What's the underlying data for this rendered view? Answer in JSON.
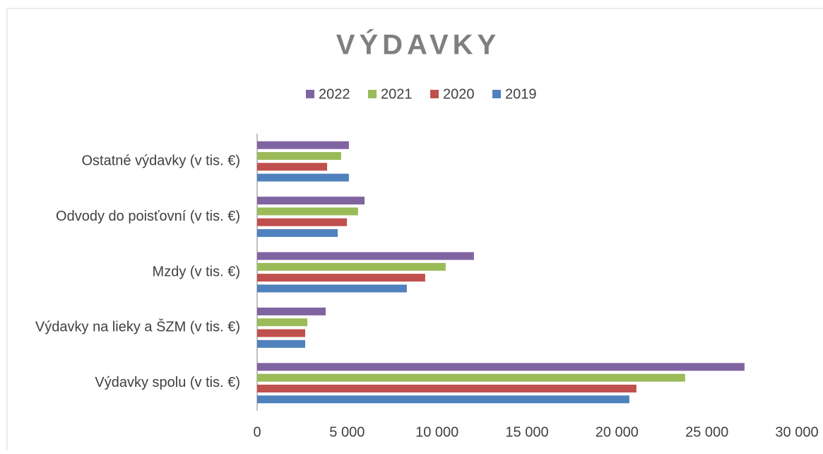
{
  "chart_data": {
    "type": "bar",
    "orientation": "horizontal",
    "title": "VÝDAVKY",
    "categories": [
      "Výdavky spolu (v tis. €)",
      "Výdavky na lieky a ŠZM (v tis. €)",
      "Mzdy (v tis. €)",
      "Odvody do poisťovní (v tis. €)",
      "Ostatné výdavky (v tis. €)"
    ],
    "series": [
      {
        "name": "2019",
        "color": "#4f81bd",
        "values": [
          20690,
          2670,
          8320,
          4480,
          5100
        ]
      },
      {
        "name": "2020",
        "color": "#c0504d",
        "values": [
          21080,
          2670,
          9340,
          4990,
          3890
        ]
      },
      {
        "name": "2021",
        "color": "#9bbb59",
        "values": [
          23790,
          2790,
          10480,
          5610,
          4670
        ]
      },
      {
        "name": "2022",
        "color": "#8064a2",
        "values": [
          27090,
          3810,
          12050,
          5970,
          5100
        ]
      }
    ],
    "xlim": [
      0,
      30000
    ],
    "xticks": [
      0,
      {
        "value": 5000,
        "label": "5 000"
      },
      {
        "value": 10000,
        "label": "10 000"
      },
      {
        "value": 15000,
        "label": "15 000"
      },
      {
        "value": 20000,
        "label": "20 000"
      },
      {
        "value": 25000,
        "label": "25 000"
      },
      {
        "value": 30000,
        "label": "30 000"
      }
    ],
    "legend": "top"
  }
}
